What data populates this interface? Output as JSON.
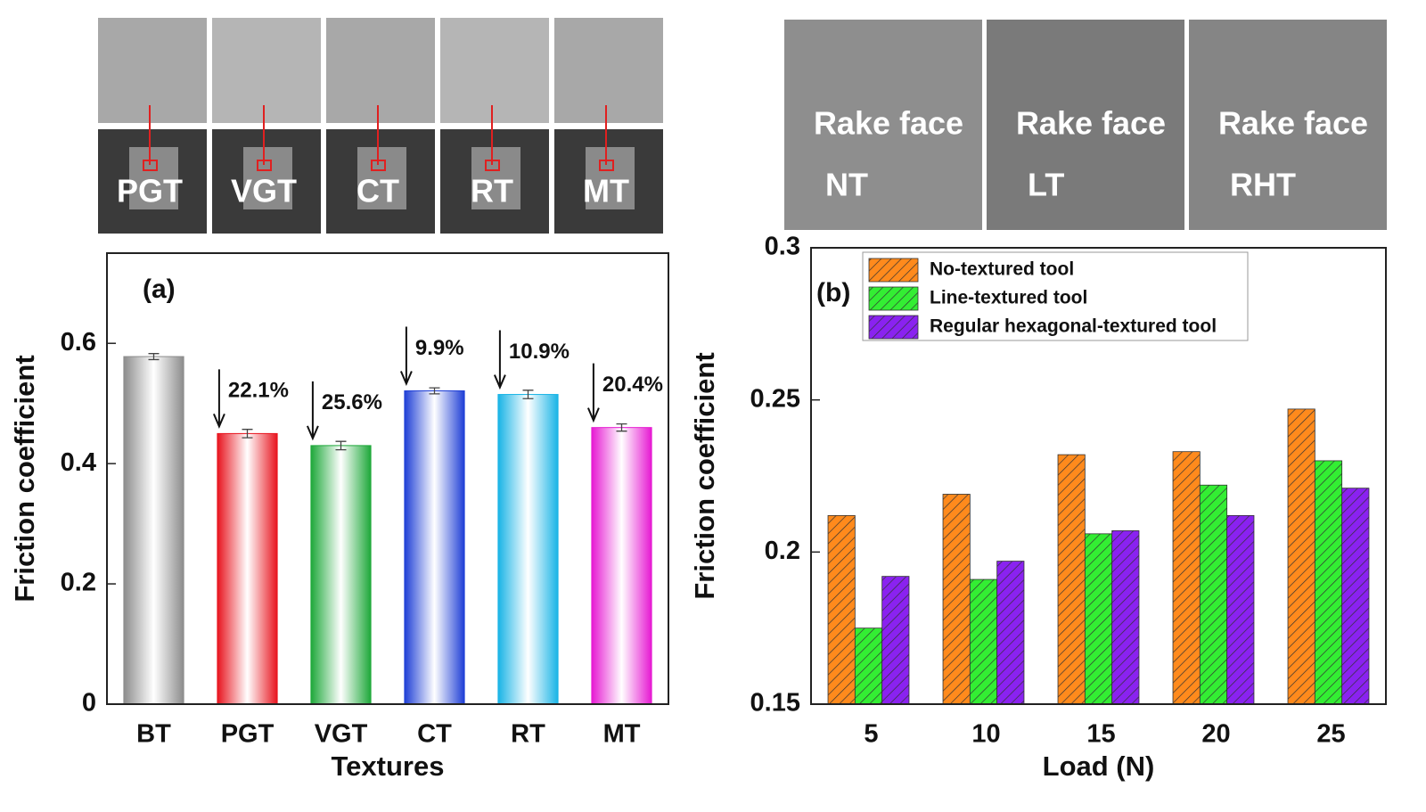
{
  "images": {
    "left": [
      "PGT",
      "VGT",
      "CT",
      "RT",
      "MT"
    ],
    "right": [
      {
        "title": "Rake face",
        "label": "NT"
      },
      {
        "title": "Rake face",
        "label": "LT"
      },
      {
        "title": "Rake face",
        "label": "RHT"
      }
    ]
  },
  "chart_data": [
    {
      "type": "bar",
      "panel_label": "(a)",
      "x_label": "Textures",
      "y_label": "Friction coefficient",
      "categories": [
        "BT",
        "PGT",
        "VGT",
        "CT",
        "RT",
        "MT"
      ],
      "values": [
        0.578,
        0.45,
        0.43,
        0.521,
        0.515,
        0.46
      ],
      "errors": [
        0.005,
        0.007,
        0.007,
        0.005,
        0.007,
        0.006
      ],
      "colors": [
        "#8c8c8c",
        "#e8141e",
        "#1ea83a",
        "#1f3fd6",
        "#19b4e6",
        "#e619d2"
      ],
      "annotations": [
        {
          "text": "22.1%",
          "category": "PGT"
        },
        {
          "text": "25.6%",
          "category": "VGT"
        },
        {
          "text": "9.9%",
          "category": "CT"
        },
        {
          "text": "10.9%",
          "category": "RT"
        },
        {
          "text": "20.4%",
          "category": "MT"
        }
      ],
      "ylim": [
        0,
        0.75
      ],
      "yticks": [
        0,
        0.2,
        0.4,
        0.6
      ]
    },
    {
      "type": "bar",
      "panel_label": "(b)",
      "x_label": "Load (N)",
      "y_label": "Friction coefficient",
      "categories": [
        "5",
        "10",
        "15",
        "20",
        "25"
      ],
      "series": [
        {
          "name": "No-textured tool",
          "color": "#ff8a1c",
          "values": [
            0.212,
            0.219,
            0.232,
            0.233,
            0.247
          ]
        },
        {
          "name": "Line-textured tool",
          "color": "#33ee33",
          "values": [
            0.175,
            0.191,
            0.206,
            0.222,
            0.23
          ]
        },
        {
          "name": "Regular hexagonal-textured tool",
          "color": "#8a22f0",
          "values": [
            0.192,
            0.197,
            0.207,
            0.212,
            0.221
          ]
        }
      ],
      "legend": "upper left",
      "ylim": [
        0.15,
        0.3
      ],
      "yticks": [
        0.15,
        0.2,
        0.25,
        0.3
      ]
    }
  ]
}
